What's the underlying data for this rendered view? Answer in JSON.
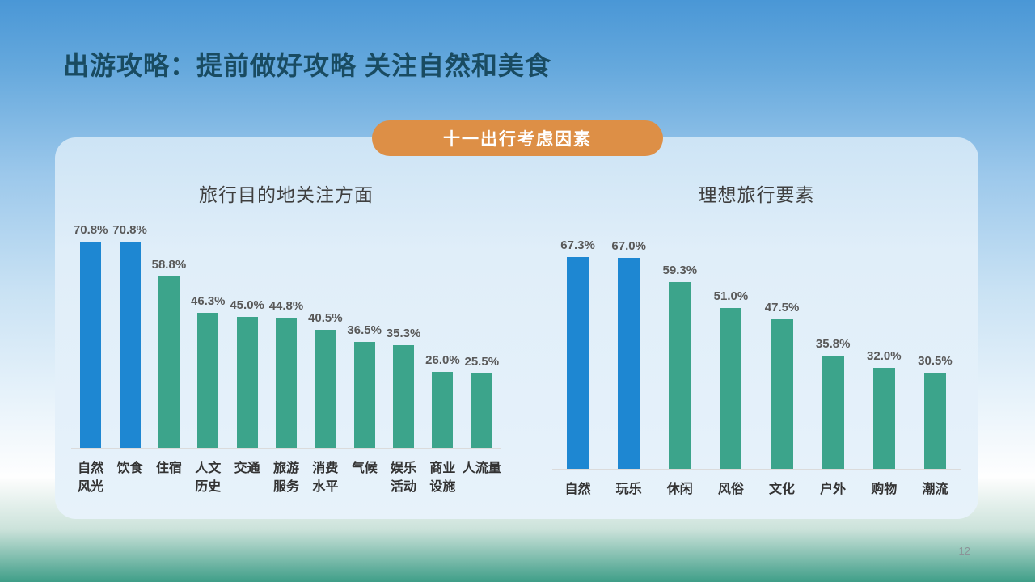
{
  "slide": {
    "title": "出游攻略：提前做好攻略 关注自然和美食",
    "badge_label": "十一出行考虑因素",
    "page_number": "12"
  },
  "colors": {
    "bar_blue": "#1E87D2",
    "bar_green": "#3CA48B",
    "badge_orange": "#DD8F46",
    "title_teal": "#194B61",
    "value_label_gray": "#595959",
    "axis_line": "#DBDBDB"
  },
  "chart_data": [
    {
      "type": "bar",
      "title": "旅行目的地关注方面",
      "categories": [
        "自然风光",
        "饮食",
        "住宿",
        "人文历史",
        "交通",
        "旅游服务",
        "消费水平",
        "气候",
        "娱乐活动",
        "商业设施",
        "人流量"
      ],
      "category_lines": [
        [
          "自然",
          "风光"
        ],
        [
          "饮食"
        ],
        [
          "住宿"
        ],
        [
          "人文",
          "历史"
        ],
        [
          "交通"
        ],
        [
          "旅游",
          "服务"
        ],
        [
          "消费",
          "水平"
        ],
        [
          "气候"
        ],
        [
          "娱乐",
          "活动"
        ],
        [
          "商业",
          "设施"
        ],
        [
          "人流量"
        ]
      ],
      "values": [
        70.8,
        70.8,
        58.8,
        46.3,
        45.0,
        44.8,
        40.5,
        36.5,
        35.3,
        26.0,
        25.5
      ],
      "value_labels": [
        "70.8%",
        "70.8%",
        "58.8%",
        "46.3%",
        "45.0%",
        "44.8%",
        "40.5%",
        "36.5%",
        "35.3%",
        "26.0%",
        "25.5%"
      ],
      "bar_colors": [
        "blue",
        "blue",
        "green",
        "green",
        "green",
        "green",
        "green",
        "green",
        "green",
        "green",
        "green"
      ],
      "unit": "%",
      "ylim": [
        0,
        80
      ],
      "grid": false,
      "legend": "none",
      "data_labels": "above-bars"
    },
    {
      "type": "bar",
      "title": "理想旅行要素",
      "categories": [
        "自然",
        "玩乐",
        "休闲",
        "风俗",
        "文化",
        "户外",
        "购物",
        "潮流"
      ],
      "category_lines": [
        [
          "自然"
        ],
        [
          "玩乐"
        ],
        [
          "休闲"
        ],
        [
          "风俗"
        ],
        [
          "文化"
        ],
        [
          "户外"
        ],
        [
          "购物"
        ],
        [
          "潮流"
        ]
      ],
      "values": [
        67.3,
        67.0,
        59.3,
        51.0,
        47.5,
        35.8,
        32.0,
        30.5
      ],
      "value_labels": [
        "67.3%",
        "67.0%",
        "59.3%",
        "51.0%",
        "47.5%",
        "35.8%",
        "32.0%",
        "30.5%"
      ],
      "bar_colors": [
        "blue",
        "blue",
        "green",
        "green",
        "green",
        "green",
        "green",
        "green"
      ],
      "unit": "%",
      "ylim": [
        0,
        75
      ],
      "grid": false,
      "legend": "none",
      "data_labels": "above-bars"
    }
  ]
}
